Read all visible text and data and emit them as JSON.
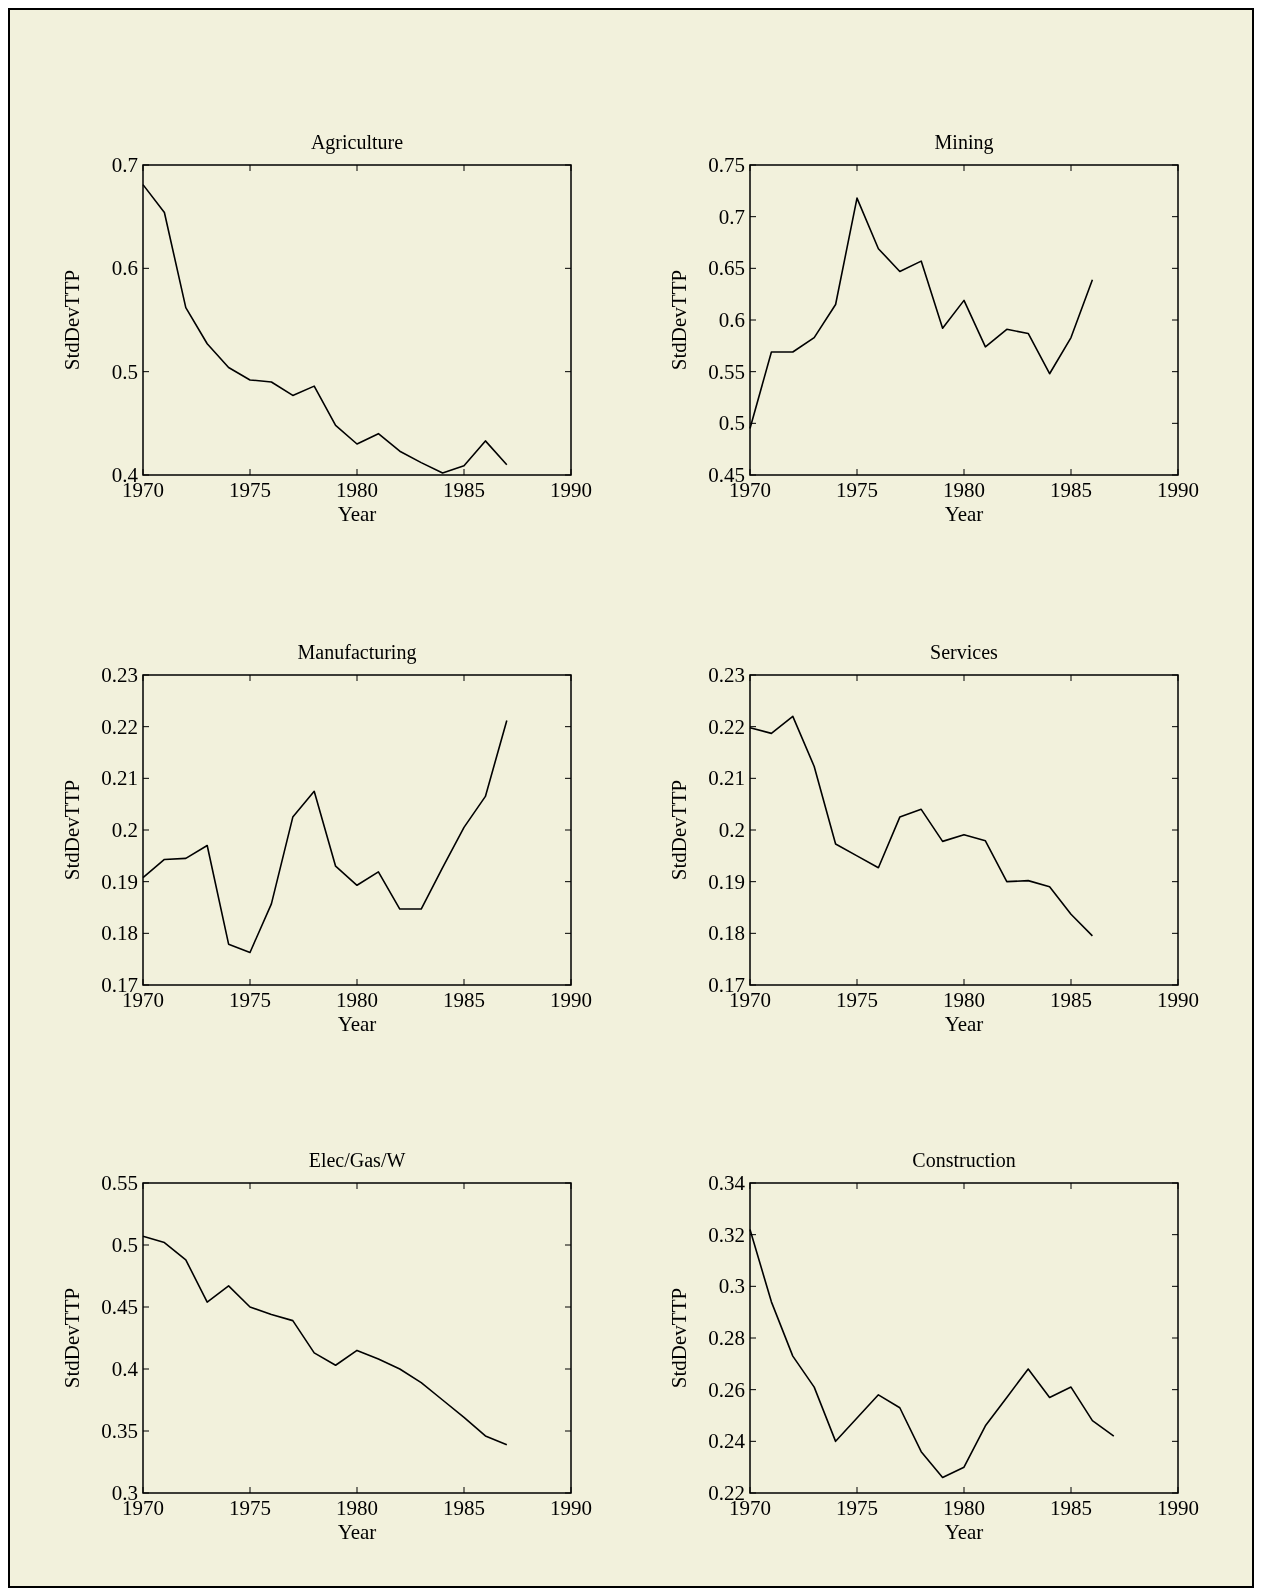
{
  "chart_data": [
    {
      "type": "line",
      "title": "Agriculture",
      "xlabel": "Year",
      "ylabel": "StdDevTTP",
      "xlim": [
        1970,
        1990
      ],
      "xticks": [
        1970,
        1975,
        1980,
        1985,
        1990
      ],
      "ylim": [
        0.4,
        0.7
      ],
      "yticks": [
        0.4,
        0.5,
        0.6,
        0.7
      ],
      "x": [
        1970,
        1971,
        1972,
        1973,
        1974,
        1975,
        1976,
        1977,
        1978,
        1979,
        1980,
        1981,
        1982,
        1983,
        1984,
        1985,
        1986,
        1987
      ],
      "series": [
        {
          "color": "#000000",
          "values": [
            0.681,
            0.654,
            0.562,
            0.527,
            0.504,
            0.492,
            0.49,
            0.477,
            0.486,
            0.448,
            0.43,
            0.44,
            0.423,
            0.412,
            0.402,
            0.409,
            0.433,
            0.41
          ]
        }
      ]
    },
    {
      "type": "line",
      "title": "Mining",
      "xlabel": "Year",
      "ylabel": "StdDevTTP",
      "xlim": [
        1970,
        1990
      ],
      "xticks": [
        1970,
        1975,
        1980,
        1985,
        1990
      ],
      "ylim": [
        0.45,
        0.75
      ],
      "yticks": [
        0.45,
        0.5,
        0.55,
        0.6,
        0.65,
        0.7,
        0.75
      ],
      "x": [
        1970,
        1971,
        1972,
        1973,
        1974,
        1975,
        1976,
        1977,
        1978,
        1979,
        1980,
        1981,
        1982,
        1983,
        1984,
        1985,
        1986
      ],
      "series": [
        {
          "color": "#000000",
          "values": [
            0.495,
            0.569,
            0.569,
            0.583,
            0.615,
            0.718,
            0.669,
            0.647,
            0.657,
            0.592,
            0.619,
            0.574,
            0.591,
            0.587,
            0.548,
            0.583,
            0.639
          ]
        }
      ]
    },
    {
      "type": "line",
      "title": "Manufacturing",
      "xlabel": "Year",
      "ylabel": "StdDevTTP",
      "xlim": [
        1970,
        1990
      ],
      "xticks": [
        1970,
        1975,
        1980,
        1985,
        1990
      ],
      "ylim": [
        0.17,
        0.23
      ],
      "yticks": [
        0.17,
        0.18,
        0.19,
        0.2,
        0.21,
        0.22,
        0.23
      ],
      "x": [
        1970,
        1971,
        1972,
        1973,
        1974,
        1975,
        1976,
        1977,
        1978,
        1979,
        1980,
        1981,
        1982,
        1983,
        1984,
        1985,
        1986,
        1987
      ],
      "series": [
        {
          "color": "#000000",
          "values": [
            0.1908,
            0.1943,
            0.1945,
            0.197,
            0.1779,
            0.1763,
            0.1857,
            0.2025,
            0.2075,
            0.193,
            0.1893,
            0.1919,
            0.1847,
            0.1847,
            0.1927,
            0.2005,
            0.2065,
            0.2212
          ]
        }
      ]
    },
    {
      "type": "line",
      "title": "Services",
      "xlabel": "Year",
      "ylabel": "StdDevTTP",
      "xlim": [
        1970,
        1990
      ],
      "xticks": [
        1970,
        1975,
        1980,
        1985,
        1990
      ],
      "ylim": [
        0.17,
        0.23
      ],
      "yticks": [
        0.17,
        0.18,
        0.19,
        0.2,
        0.21,
        0.22,
        0.23
      ],
      "x": [
        1970,
        1971,
        1972,
        1973,
        1974,
        1975,
        1976,
        1977,
        1978,
        1979,
        1980,
        1981,
        1982,
        1983,
        1984,
        1985,
        1986
      ],
      "series": [
        {
          "color": "#000000",
          "values": [
            0.2198,
            0.2187,
            0.222,
            0.2123,
            0.1973,
            0.195,
            0.1927,
            0.2025,
            0.204,
            0.1978,
            0.1991,
            0.1979,
            0.19,
            0.1902,
            0.189,
            0.1837,
            0.1795
          ]
        }
      ]
    },
    {
      "type": "line",
      "title": "Elec/Gas/W",
      "xlabel": "Year",
      "ylabel": "StdDevTTP",
      "xlim": [
        1970,
        1990
      ],
      "xticks": [
        1970,
        1975,
        1980,
        1985,
        1990
      ],
      "ylim": [
        0.3,
        0.55
      ],
      "yticks": [
        0.3,
        0.35,
        0.4,
        0.45,
        0.5,
        0.55
      ],
      "x": [
        1970,
        1971,
        1972,
        1973,
        1974,
        1975,
        1976,
        1977,
        1978,
        1979,
        1980,
        1981,
        1982,
        1983,
        1984,
        1985,
        1986,
        1987
      ],
      "series": [
        {
          "color": "#000000",
          "values": [
            0.507,
            0.502,
            0.488,
            0.454,
            0.467,
            0.45,
            0.444,
            0.439,
            0.413,
            0.403,
            0.415,
            0.408,
            0.4,
            0.389,
            0.375,
            0.361,
            0.346,
            0.339
          ]
        }
      ]
    },
    {
      "type": "line",
      "title": "Construction",
      "xlabel": "Year",
      "ylabel": "StdDevTTP",
      "xlim": [
        1970,
        1990
      ],
      "xticks": [
        1970,
        1975,
        1980,
        1985,
        1990
      ],
      "ylim": [
        0.22,
        0.34
      ],
      "yticks": [
        0.22,
        0.24,
        0.26,
        0.28,
        0.3,
        0.32,
        0.34
      ],
      "x": [
        1970,
        1971,
        1972,
        1973,
        1974,
        1975,
        1976,
        1977,
        1978,
        1979,
        1980,
        1981,
        1982,
        1983,
        1984,
        1985,
        1986,
        1987
      ],
      "series": [
        {
          "color": "#000000",
          "values": [
            0.322,
            0.294,
            0.273,
            0.261,
            0.24,
            0.249,
            0.258,
            0.253,
            0.236,
            0.226,
            0.23,
            0.246,
            0.257,
            0.268,
            0.257,
            0.261,
            0.248,
            0.242
          ]
        }
      ]
    }
  ]
}
